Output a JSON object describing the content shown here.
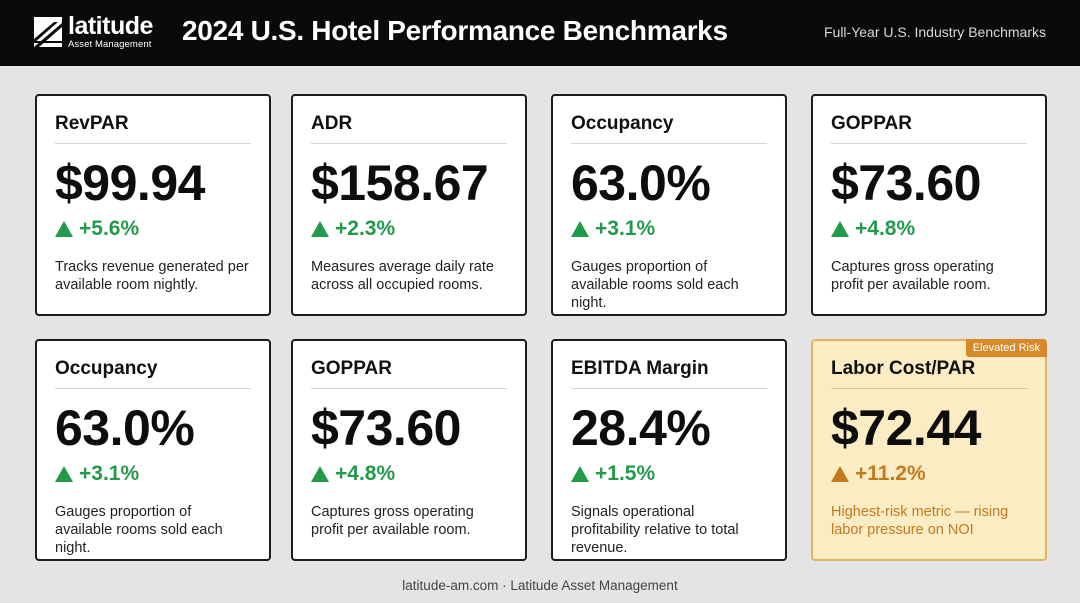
{
  "header": {
    "logo_name": "latitude",
    "logo_sub": "Asset Management",
    "title": "2024 U.S. Hotel Performance Benchmarks",
    "subtitle": "Full-Year U.S. Industry Benchmarks"
  },
  "colors": {
    "positive": "#23994a",
    "risk": "#c37a1c",
    "risk_background": "#fcecc4",
    "header_background": "#0a0a0a"
  },
  "cards": [
    {
      "title": "RevPAR",
      "value": "$99.94",
      "change": "+5.6%",
      "desc": "Tracks revenue generated per available room nightly."
    },
    {
      "title": "ADR",
      "value": "$158.67",
      "change": "+2.3%",
      "desc": "Measures average daily rate across all occupied rooms."
    },
    {
      "title": "Occupancy",
      "value": "63.0%",
      "change": "+3.1%",
      "desc": "Gauges proportion of available rooms sold each night."
    },
    {
      "title": "GOPPAR",
      "value": "$73.60",
      "change": "+4.8%",
      "desc": "Captures gross operating profit per available room."
    },
    {
      "title": "Occupancy",
      "value": "63.0%",
      "change": "+3.1%",
      "desc": "Gauges proportion of available rooms sold each night."
    },
    {
      "title": "GOPPAR",
      "value": "$73.60",
      "change": "+4.8%",
      "desc": "Captures gross operating profit per available room."
    },
    {
      "title": "EBITDA Margin",
      "value": "28.4%",
      "change": "+1.5%",
      "desc": "Signals operational profitability relative to total revenue."
    },
    {
      "title": "Labor Cost/PAR",
      "value": "$72.44",
      "change": "+11.2%",
      "desc": "Highest-risk metric — rising labor pressure on NOI",
      "badge": "Elevated Risk"
    }
  ],
  "footer": "latitude-am.com · Latitude Asset Management"
}
